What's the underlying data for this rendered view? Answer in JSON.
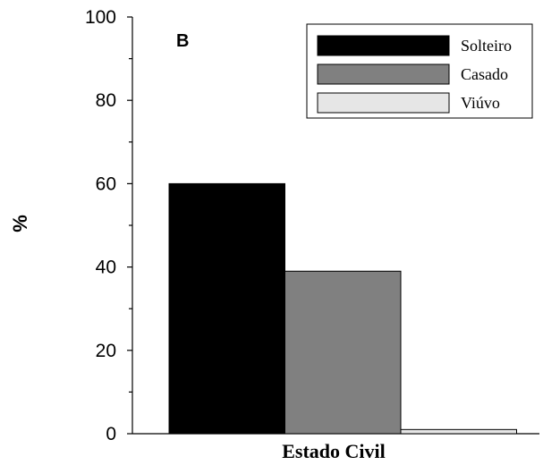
{
  "chart_data": {
    "type": "bar",
    "panel_label": "B",
    "xlabel": "Estado Civil",
    "ylabel": "%",
    "ylim": [
      0,
      100
    ],
    "yticks": [
      0,
      20,
      40,
      60,
      80,
      100
    ],
    "grid": false,
    "legend_position": "top-right",
    "series": [
      {
        "name": "Solteiro",
        "value": 60,
        "color": "#000000"
      },
      {
        "name": "Casado",
        "value": 39,
        "color": "#808080"
      },
      {
        "name": "Viúvo",
        "value": 1,
        "color": "#e6e6e6"
      }
    ]
  }
}
